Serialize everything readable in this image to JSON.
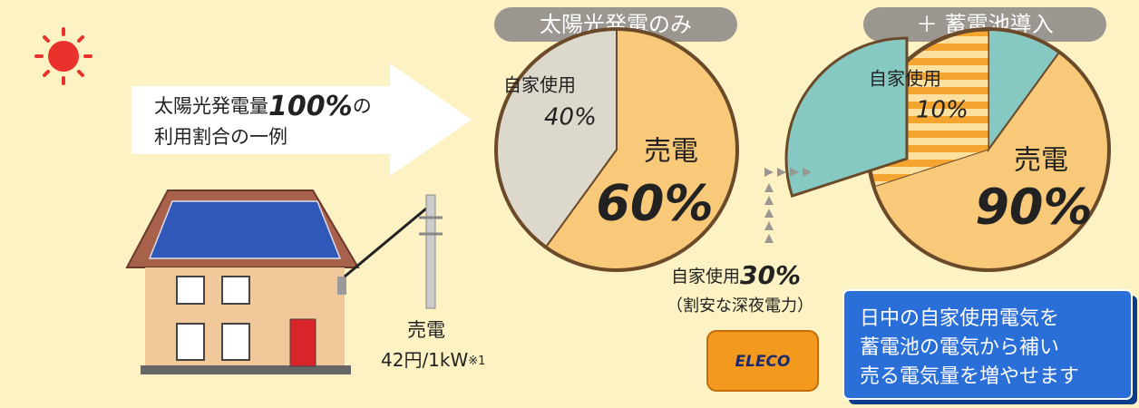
{
  "intro": {
    "prefix": "太陽光発電量",
    "amount": "100%",
    "suffix": "の",
    "line2": "利用割合の一例"
  },
  "house": {
    "sale_label": "売電",
    "price": "42円/1kW",
    "note": "※1"
  },
  "pie_solar": {
    "title": "太陽光発電のみ",
    "slices": [
      {
        "label": "売電",
        "value": 60,
        "value_label": "60%",
        "color": "#f9c97a"
      },
      {
        "label": "自家使用",
        "value": 40,
        "value_label": "40%",
        "color": "#dcd8cc"
      }
    ]
  },
  "pie_battery": {
    "title": "＋ 蓄電池導入",
    "slices": [
      {
        "label": "自家使用",
        "value": 10,
        "value_label": "10%",
        "color": "#86c9c2"
      },
      {
        "label": "売電",
        "value": 90,
        "value_label": "90%",
        "color": "#f9c97a"
      }
    ],
    "night_use": {
      "label": "自家使用",
      "value": 30,
      "value_label": "30%",
      "note": "（割安な深夜電力）",
      "color": "#86c9c2"
    }
  },
  "logo": "ELECO",
  "callout": [
    "日中の自家使用電気を",
    "蓄電池の電気から補い",
    "売る電気量を増やせます"
  ]
}
